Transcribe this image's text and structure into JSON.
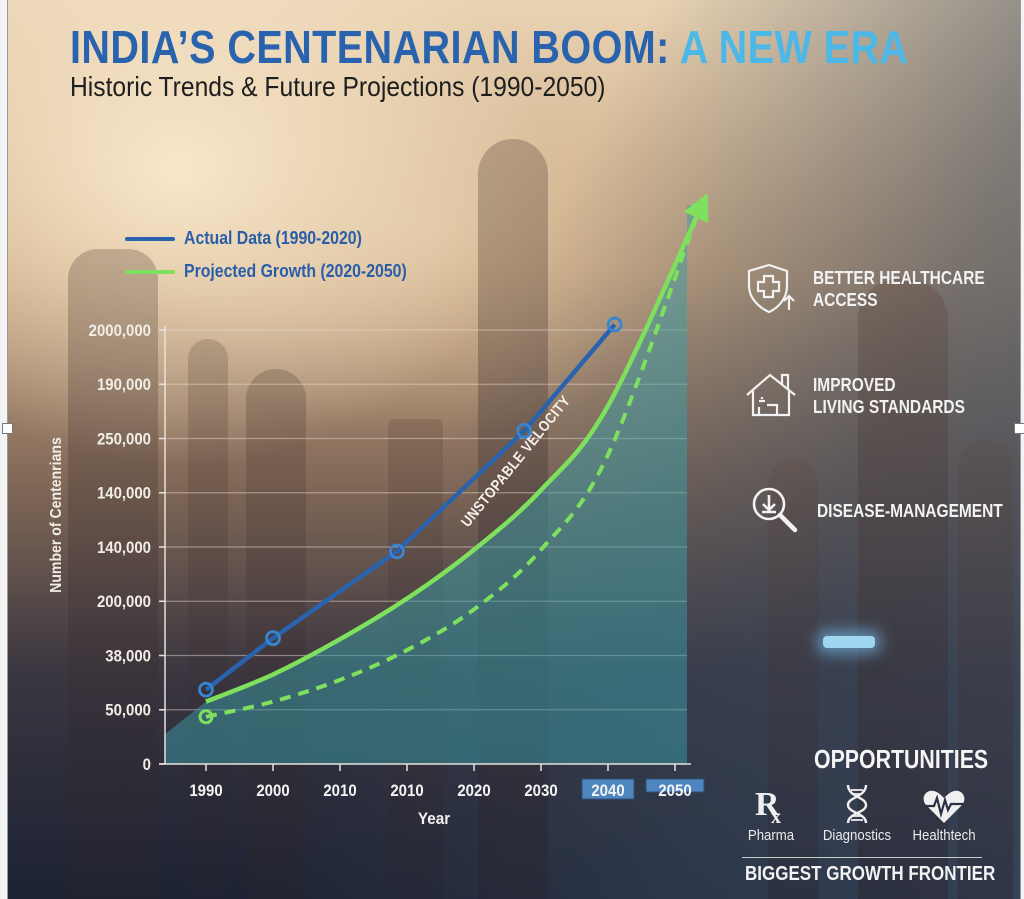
{
  "header": {
    "title_main": "INDIA’S CENTENARIAN BOOM:",
    "title_accent": "A NEW ERA",
    "subtitle": "Historic Trends & Future Projections (1990-2050)"
  },
  "colors": {
    "title_blue": "#2a63ad",
    "title_accent": "#4bb8e8",
    "actual_line": "#2a63ad",
    "projected_line": "#7ee05c",
    "area_fill": "#3a9ba6",
    "highlight_tick_bg": "#4f86c0"
  },
  "chart_data": {
    "type": "line",
    "title": "India's Centenarian Boom: A New Era",
    "subtitle": "Historic Trends & Future Projections (1990-2050)",
    "xlabel": "Year",
    "ylabel": "Number of Centenrians",
    "x_tick_labels": [
      "1990",
      "2000",
      "2010",
      "2010",
      "2020",
      "2030",
      "2040",
      "2050"
    ],
    "highlighted_x_ticks": [
      "2040",
      "2050"
    ],
    "y_tick_labels": [
      "0",
      "50,000",
      "38,000",
      "200,000",
      "140,000",
      "140,000",
      "250,000",
      "190,000",
      "2000,000"
    ],
    "y_tick_levels": [
      0,
      1,
      2,
      3,
      4,
      5,
      6,
      7,
      8
    ],
    "ylim_levels": [
      0,
      8
    ],
    "grid": true,
    "legend": [
      {
        "name": "Actual Data (1990-2020)",
        "color": "#2a63ad",
        "style": "solid"
      },
      {
        "name": "Projected Growth (2020-2050)",
        "color": "#7ee05c",
        "style": "solid"
      }
    ],
    "legend_position": "top-left",
    "series": [
      {
        "name": "Actual Data (1990-2020)",
        "style": "solid-with-markers",
        "x_index": [
          0,
          1,
          2.85,
          4.75,
          6.1
        ],
        "y_level": [
          1.37,
          2.32,
          3.92,
          6.14,
          8.1
        ]
      },
      {
        "name": "Projected Growth (2020-2050)",
        "style": "solid-arrow",
        "x_index": [
          0,
          1,
          2,
          3,
          4,
          5,
          6,
          7.4
        ],
        "y_level": [
          1.15,
          1.65,
          2.3,
          3.05,
          3.95,
          5.05,
          6.6,
          10.3
        ]
      },
      {
        "name": "Projected (lower bound)",
        "style": "dashed",
        "x_index": [
          0,
          1,
          2,
          3,
          4,
          5,
          6,
          7.3
        ],
        "y_level": [
          0.87,
          1.15,
          1.55,
          2.1,
          2.85,
          3.95,
          5.7,
          10.0
        ]
      }
    ],
    "annotations": [
      "UNSTOPABLE VELOCITY"
    ]
  },
  "features": [
    {
      "icon": "shield-plus-icon",
      "lines": [
        "BETTER HEALTHCARE",
        "ACCESS"
      ]
    },
    {
      "icon": "house-icon",
      "lines": [
        "IMPROVED",
        "LIVING STANDARDS"
      ]
    },
    {
      "icon": "magnifier-download-icon",
      "lines": [
        "DISEASE-MANAGEMENT"
      ]
    }
  ],
  "opportunities": {
    "title": "OPPORTUNITIES",
    "items": [
      {
        "icon": "rx-icon",
        "glyph": "Rₓ",
        "label": "Pharma"
      },
      {
        "icon": "dna-icon",
        "label": "Diagnostics"
      },
      {
        "icon": "heart-pulse-icon",
        "label": "Healthtech"
      }
    ],
    "footer": "BIGGEST GROWTH FRONTIER"
  }
}
